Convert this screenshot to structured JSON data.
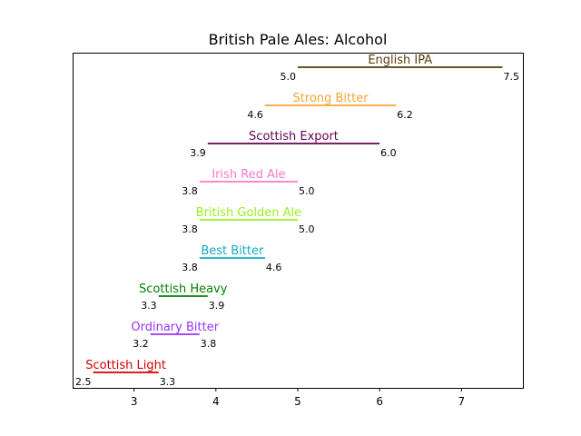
{
  "chart_data": {
    "type": "range",
    "title": "British Pale Ales: Alcohol",
    "xlabel": "",
    "ylabel": "",
    "xlim": [
      2.25,
      7.75
    ],
    "xticks": [
      3,
      4,
      5,
      6,
      7
    ],
    "grid": false,
    "series": [
      {
        "name": "Scottish Light",
        "low": 2.5,
        "high": 3.3,
        "low_label": "2.5",
        "high_label": "3.3",
        "color": "#d10000"
      },
      {
        "name": "Ordinary Bitter",
        "low": 3.2,
        "high": 3.8,
        "low_label": "3.2",
        "high_label": "3.8",
        "color": "#9933ff"
      },
      {
        "name": "Scottish Heavy",
        "low": 3.3,
        "high": 3.9,
        "low_label": "3.3",
        "high_label": "3.9",
        "color": "#008000"
      },
      {
        "name": "Best Bitter",
        "low": 3.8,
        "high": 4.6,
        "low_label": "3.8",
        "high_label": "4.6",
        "color": "#17a9c6"
      },
      {
        "name": "British Golden Ale",
        "low": 3.8,
        "high": 5.0,
        "low_label": "3.8",
        "high_label": "5.0",
        "color": "#99ee22"
      },
      {
        "name": "Irish Red Ale",
        "low": 3.8,
        "high": 5.0,
        "low_label": "3.8",
        "high_label": "5.0",
        "color": "#ff77cc"
      },
      {
        "name": "Scottish Export",
        "low": 3.9,
        "high": 6.0,
        "low_label": "3.9",
        "high_label": "6.0",
        "color": "#660055"
      },
      {
        "name": "Strong Bitter",
        "low": 4.6,
        "high": 6.2,
        "low_label": "4.6",
        "high_label": "6.2",
        "color": "#f5a533"
      },
      {
        "name": "English IPA",
        "low": 5.0,
        "high": 7.5,
        "low_label": "5.0",
        "high_label": "7.5",
        "color": "#5c3a0a"
      }
    ]
  }
}
